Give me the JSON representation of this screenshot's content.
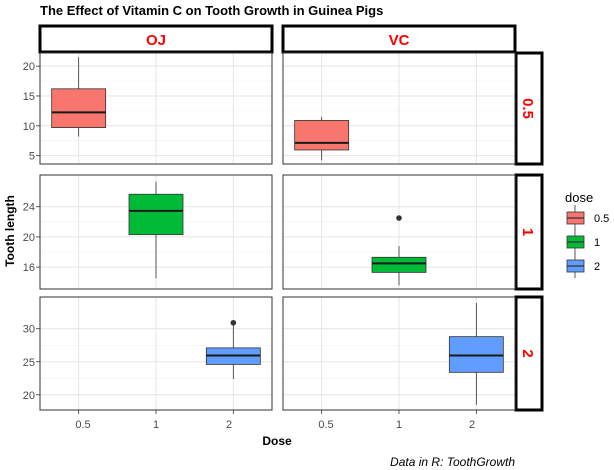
{
  "chart_data": {
    "type": "boxplot",
    "title": "The Effect of Vitamin C on Tooth Growth in Guinea Pigs",
    "xlabel": "Dose",
    "ylabel": "Tooth length",
    "caption": "Data in R: ToothGrowth",
    "facet_cols": [
      "OJ",
      "VC"
    ],
    "facet_rows": [
      "0.5",
      "1",
      "2"
    ],
    "x_categories": [
      "0.5",
      "1",
      "2"
    ],
    "legend": {
      "title": "dose",
      "position": "right",
      "entries": [
        {
          "label": "0.5",
          "color": "#F8766D"
        },
        {
          "label": "1",
          "color": "#00BA38"
        },
        {
          "label": "2",
          "color": "#619CFF"
        }
      ]
    },
    "row_scales": {
      "0.5": {
        "ylim": [
          3.6,
          22.2
        ],
        "ticks": [
          5,
          10,
          15,
          20
        ]
      },
      "1": {
        "ylim": [
          13.1,
          28.2
        ],
        "ticks": [
          16,
          20,
          24
        ]
      },
      "2": {
        "ylim": [
          17.7,
          34.8
        ],
        "ticks": [
          20,
          25,
          30
        ]
      }
    },
    "boxes": [
      {
        "supp": "OJ",
        "dose": "0.5",
        "min": 8.2,
        "q1": 9.7,
        "median": 12.25,
        "q3": 16.2,
        "max": 21.5,
        "outliers": []
      },
      {
        "supp": "VC",
        "dose": "0.5",
        "min": 4.2,
        "q1": 5.95,
        "median": 7.15,
        "q3": 10.9,
        "max": 11.5,
        "outliers": []
      },
      {
        "supp": "OJ",
        "dose": "1",
        "min": 14.5,
        "q1": 20.3,
        "median": 23.45,
        "q3": 25.65,
        "max": 27.3,
        "outliers": []
      },
      {
        "supp": "VC",
        "dose": "1",
        "min": 13.6,
        "q1": 15.3,
        "median": 16.5,
        "q3": 17.3,
        "max": 18.8,
        "outliers": [
          22.5
        ]
      },
      {
        "supp": "OJ",
        "dose": "2",
        "min": 22.4,
        "q1": 24.6,
        "median": 25.95,
        "q3": 27.1,
        "max": 30.9,
        "outliers": [
          30.9
        ]
      },
      {
        "supp": "VC",
        "dose": "2",
        "min": 18.5,
        "q1": 23.4,
        "median": 25.95,
        "q3": 28.8,
        "max": 33.9,
        "outliers": []
      }
    ],
    "grid": true
  }
}
